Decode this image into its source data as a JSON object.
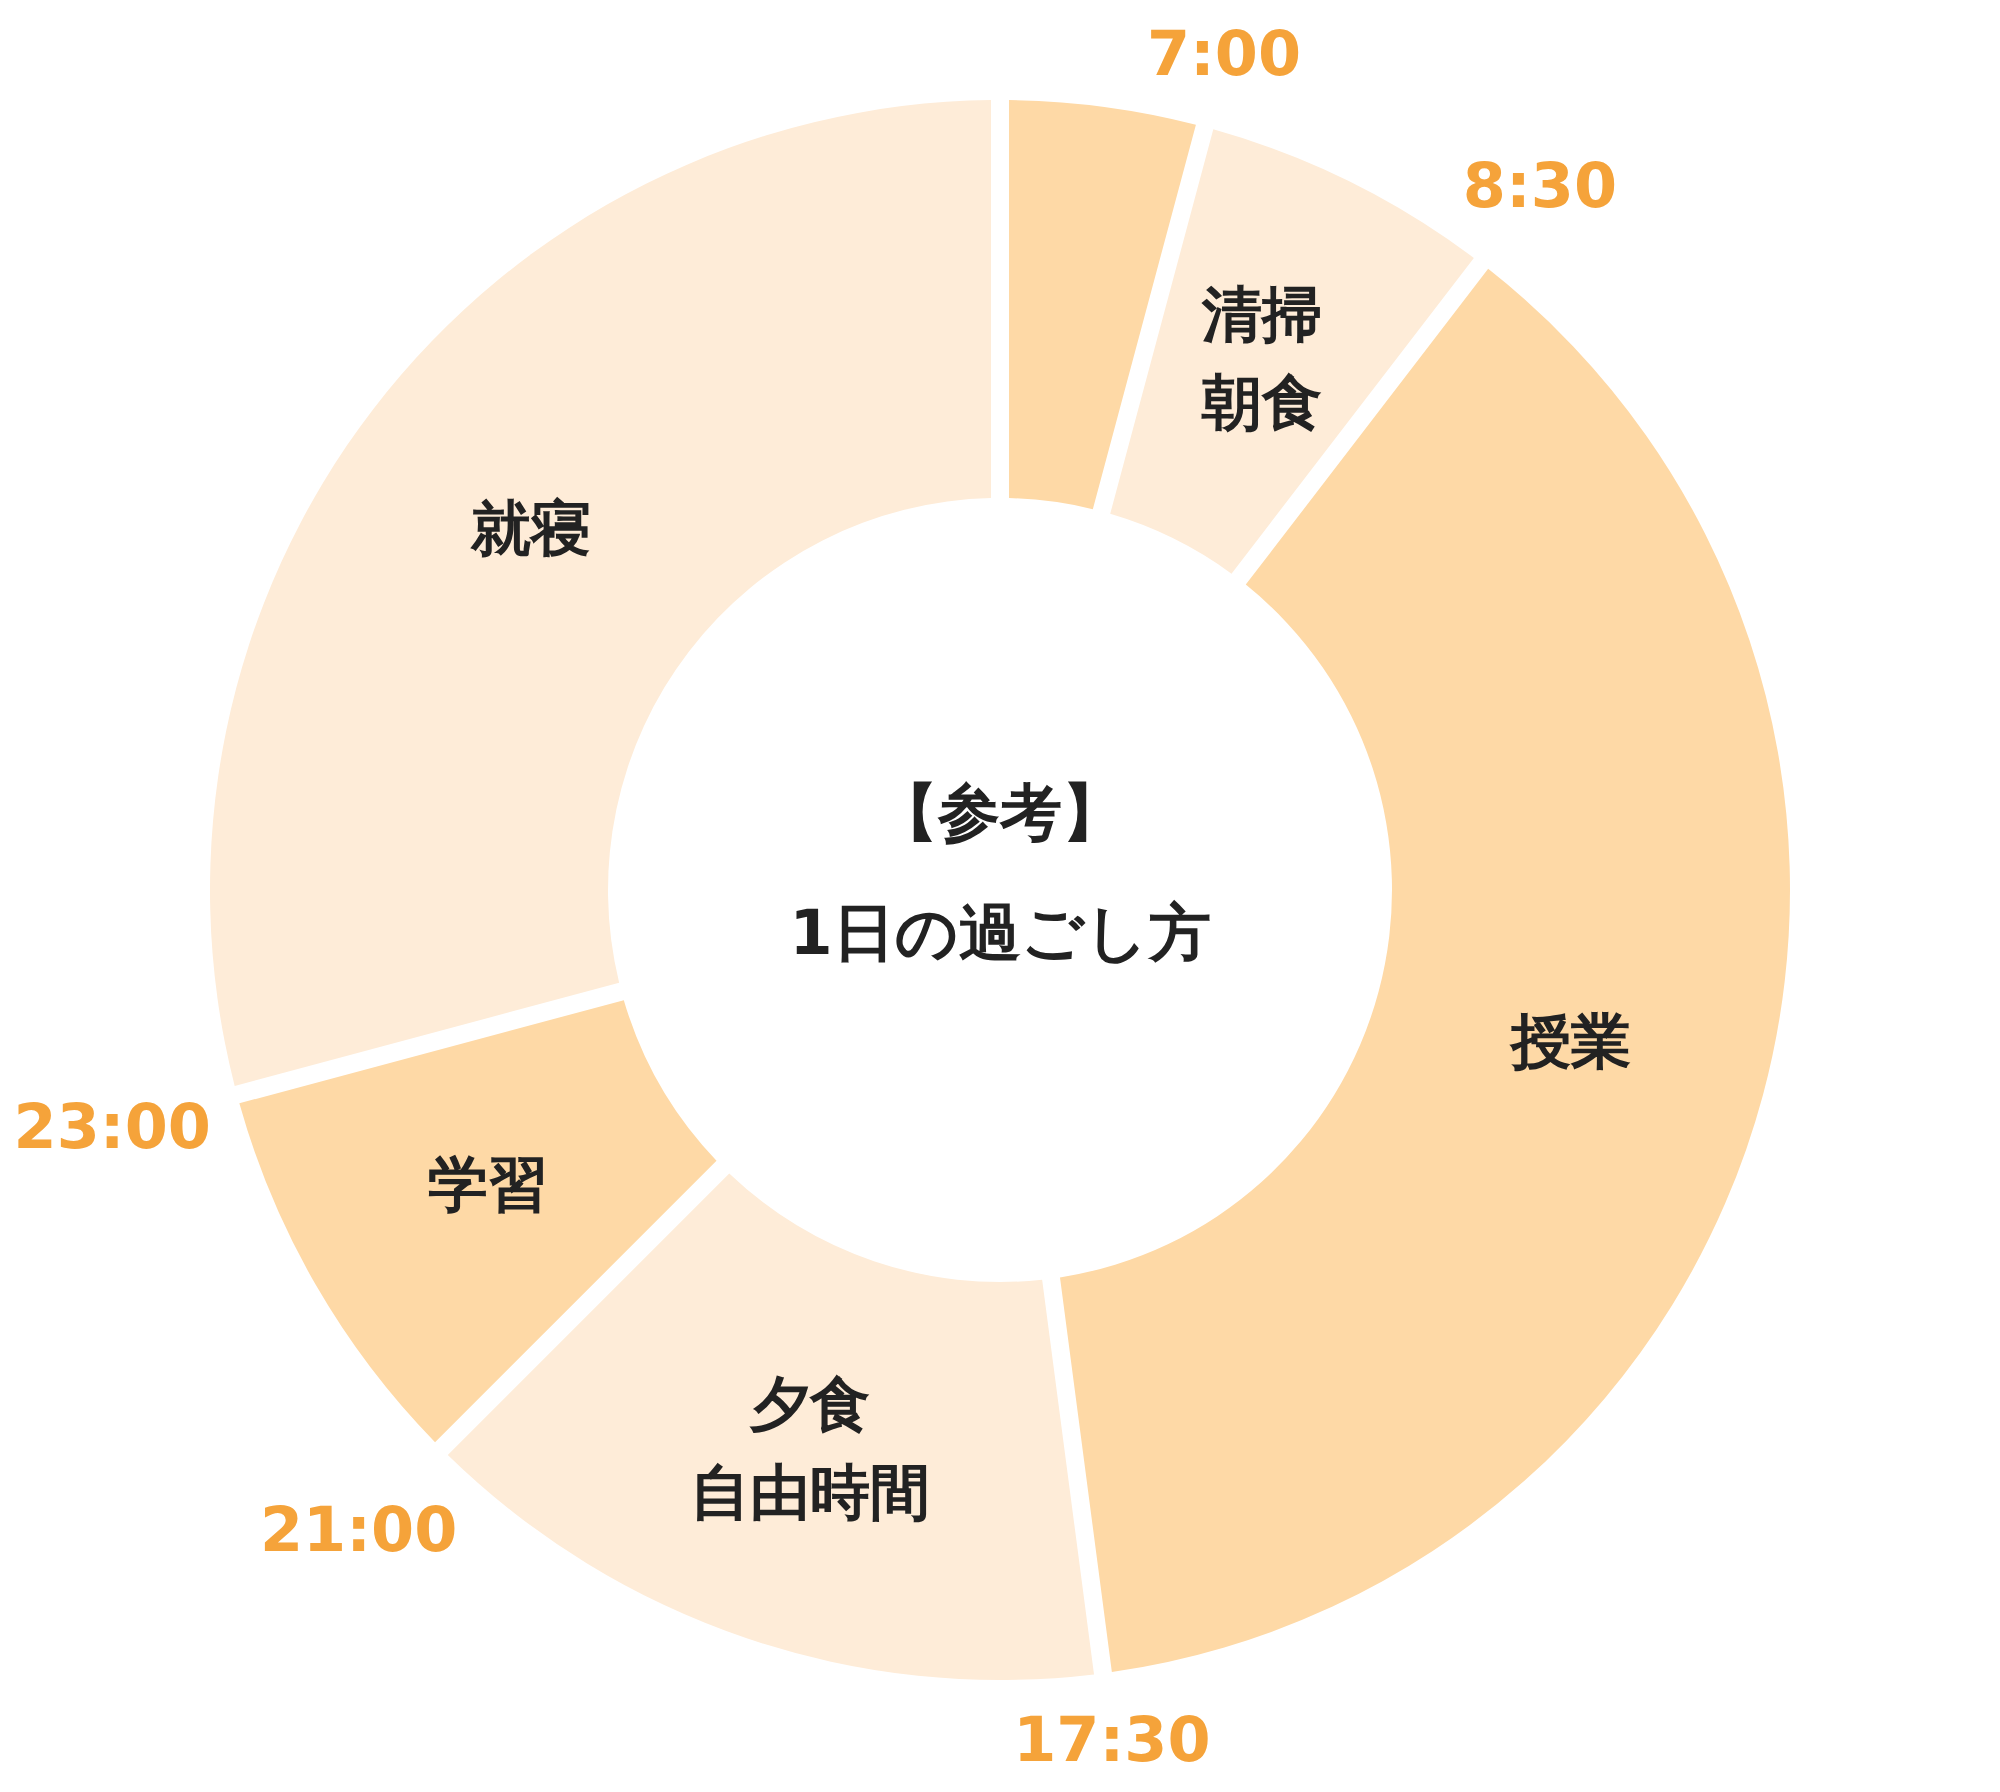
{
  "chart_data": {
    "type": "donut",
    "title": "【参考】\n1日の過ごし方",
    "categories": [
      null,
      "清掃朝食",
      "授業",
      "夕食自由時間",
      "学習",
      "就寝"
    ],
    "values": [
      4.17,
      6.25,
      37.5,
      14.58,
      8.33,
      29.17
    ],
    "colors": [
      "#fed9a6",
      "#feecd8",
      "#fed9a6",
      "#feecd8",
      "#fed9a6",
      "#feecd8"
    ],
    "annotations": [
      "7:00",
      "8:30",
      "17:30",
      "21:00",
      "23:00"
    ]
  }
}
